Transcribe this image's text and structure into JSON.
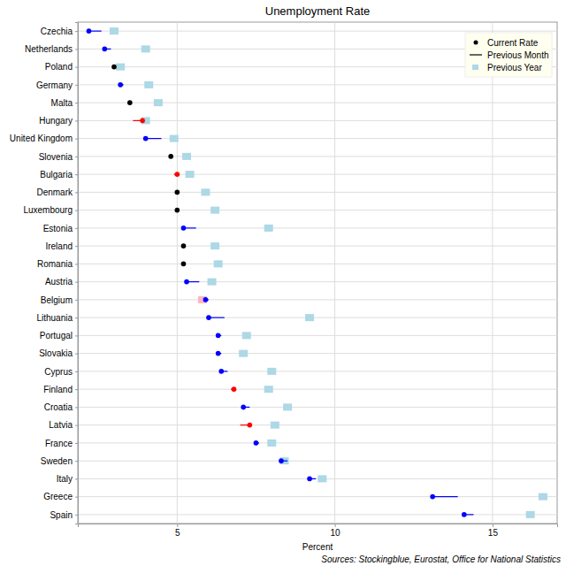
{
  "chart_data": {
    "type": "dot",
    "title": "Unemployment Rate",
    "x_label": "Percent",
    "source": "Sources: Stockingblue, Eurostat, Office for National Statistics",
    "orientation": "horizontal",
    "grid": true,
    "legend": "top-right",
    "categories": [
      "Czechia",
      "Netherlands",
      "Poland",
      "Germany",
      "Malta",
      "Hungary",
      "United Kingdom",
      "Slovenia",
      "Bulgaria",
      "Denmark",
      "Luxembourg",
      "Estonia",
      "Ireland",
      "Romania",
      "Austria",
      "Belgium",
      "Lithuania",
      "Portugal",
      "Slovakia",
      "Cyprus",
      "Finland",
      "Croatia",
      "Latvia",
      "France",
      "Sweden",
      "Italy",
      "Greece",
      "Spain"
    ],
    "xlim": [
      1.85,
      17.05
    ],
    "xticks": [
      5,
      10,
      15
    ],
    "series": [
      {
        "name": "Current Rate",
        "marker": "circle",
        "color": "#000000",
        "values": [
          2.2,
          2.7,
          3.0,
          3.2,
          3.5,
          3.9,
          4.0,
          4.8,
          5.0,
          5.0,
          5.0,
          5.2,
          5.2,
          5.2,
          5.3,
          5.9,
          6.0,
          6.3,
          6.3,
          6.4,
          6.8,
          7.1,
          7.3,
          7.5,
          8.3,
          9.2,
          13.1,
          14.1
        ],
        "colors": [
          "#0000ff",
          "#0000ff",
          "#000000",
          "#0000ff",
          "#000000",
          "#ff0000",
          "#0000ff",
          "#000000",
          "#ff0000",
          "#000000",
          "#000000",
          "#0000ff",
          "#000000",
          "#000000",
          "#0000ff",
          "#0000ff",
          "#0000ff",
          "#0000ff",
          "#0000ff",
          "#0000ff",
          "#ff0000",
          "#0000ff",
          "#ff0000",
          "#0000ff",
          "#0000ff",
          "#0000ff",
          "#0000ff",
          "#0000ff"
        ]
      },
      {
        "name": "Previous Month",
        "marker": "line",
        "color": "#000000",
        "values": [
          2.6,
          2.9,
          3.0,
          3.3,
          3.5,
          3.6,
          4.5,
          4.8,
          4.9,
          5.0,
          5.0,
          5.6,
          5.2,
          5.2,
          5.7,
          6.0,
          6.5,
          6.4,
          6.4,
          6.6,
          6.7,
          7.3,
          7.0,
          7.6,
          8.5,
          9.4,
          13.9,
          14.4
        ],
        "colors": [
          "#0000ff",
          "#0000ff",
          "#000000",
          "#0000ff",
          "#000000",
          "#ff0000",
          "#0000ff",
          "#000000",
          "#ff0000",
          "#000000",
          "#000000",
          "#0000ff",
          "#000000",
          "#000000",
          "#0000ff",
          "#0000ff",
          "#0000ff",
          "#0000ff",
          "#0000ff",
          "#0000ff",
          "#ff0000",
          "#0000ff",
          "#ff0000",
          "#0000ff",
          "#0000ff",
          "#0000ff",
          "#0000ff",
          "#0000ff"
        ]
      },
      {
        "name": "Previous Year",
        "marker": "square",
        "color": "#add8e6",
        "values": [
          3.0,
          4.0,
          3.2,
          4.1,
          4.4,
          4.0,
          4.9,
          5.3,
          5.4,
          5.9,
          6.2,
          7.9,
          6.2,
          6.3,
          6.1,
          5.8,
          9.2,
          7.2,
          7.1,
          8.0,
          7.9,
          8.5,
          8.1,
          8.0,
          8.4,
          9.6,
          16.6,
          16.2
        ],
        "colors": [
          "#add8e6",
          "#add8e6",
          "#add8e6",
          "#add8e6",
          "#add8e6",
          "#add8e6",
          "#add8e6",
          "#add8e6",
          "#add8e6",
          "#add8e6",
          "#add8e6",
          "#add8e6",
          "#add8e6",
          "#add8e6",
          "#add8e6",
          "#ffb6c1",
          "#add8e6",
          "#add8e6",
          "#add8e6",
          "#add8e6",
          "#add8e6",
          "#add8e6",
          "#add8e6",
          "#add8e6",
          "#add8e6",
          "#add8e6",
          "#add8e6",
          "#add8e6"
        ]
      }
    ]
  }
}
